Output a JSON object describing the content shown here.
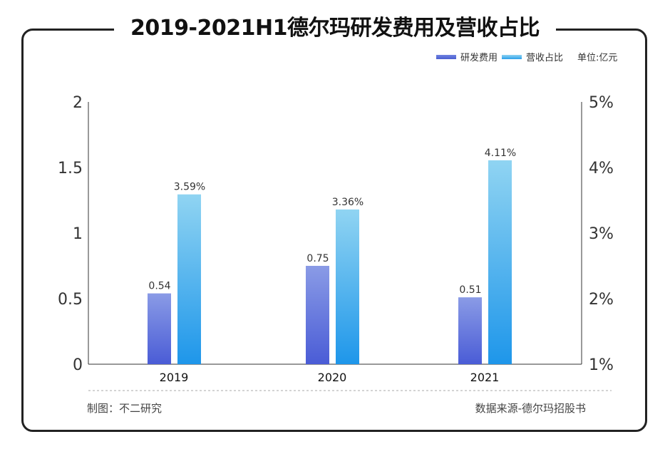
{
  "title": "2019-2021H1德尔玛研发费用及营收占比",
  "legend": {
    "series1": "研发费用",
    "series2": "营收占比",
    "unit": "单位:亿元"
  },
  "footer": {
    "left": "制图：不二研究",
    "right": "数据来源-德尔玛招股书"
  },
  "colors": {
    "series1": "#5b6fd8",
    "series2": "#2aa0ea"
  },
  "chart_data": {
    "type": "bar",
    "title": "2019-2021H1德尔玛研发费用及营收占比",
    "categories": [
      "2019",
      "2020",
      "2021"
    ],
    "series": [
      {
        "name": "研发费用",
        "axis": "left",
        "values": [
          0.54,
          0.75,
          0.51
        ],
        "labels": [
          "0.54",
          "0.75",
          "0.51"
        ]
      },
      {
        "name": "营收占比",
        "axis": "right",
        "values": [
          3.59,
          3.36,
          4.11
        ],
        "labels": [
          "3.59%",
          "3.36%",
          "4.11%"
        ]
      }
    ],
    "ylim": [
      0,
      2
    ],
    "yticks": [
      "0",
      "0.5",
      "1",
      "1.5",
      "2"
    ],
    "y2lim": [
      1,
      5
    ],
    "y2ticks": [
      "1%",
      "2%",
      "3%",
      "4%",
      "5%"
    ],
    "unit": "单位:亿元"
  }
}
